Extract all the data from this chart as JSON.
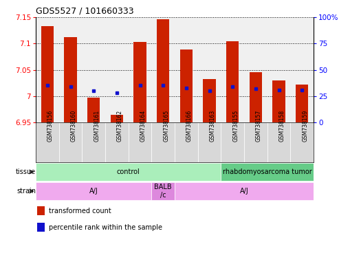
{
  "title": "GDS5527 / 101660333",
  "samples": [
    "GSM738156",
    "GSM738160",
    "GSM738161",
    "GSM738162",
    "GSM738164",
    "GSM738165",
    "GSM738166",
    "GSM738163",
    "GSM738155",
    "GSM738157",
    "GSM738158",
    "GSM738159"
  ],
  "bar_values": [
    7.133,
    7.112,
    6.997,
    6.965,
    7.103,
    7.146,
    7.088,
    7.033,
    7.104,
    7.045,
    7.03,
    7.022
  ],
  "percentile_values": [
    35,
    34,
    30,
    28,
    35,
    35,
    33,
    30,
    34,
    32,
    31,
    31
  ],
  "ymin": 6.95,
  "ymax": 7.15,
  "y_ticks": [
    6.95,
    7.0,
    7.05,
    7.1,
    7.15
  ],
  "y_tick_labels": [
    "6.95",
    "7",
    "7.05",
    "7.1",
    "7.15"
  ],
  "y2_ticks": [
    0,
    25,
    50,
    75,
    100
  ],
  "bar_color": "#cc2200",
  "dot_color": "#1111cc",
  "chart_bg": "#f0f0f0",
  "sample_bg": "#d8d8d8",
  "tissue_groups": [
    {
      "label": "control",
      "start": 0,
      "end": 8,
      "color": "#aaeebb"
    },
    {
      "label": "rhabdomyosarcoma tumor",
      "start": 8,
      "end": 12,
      "color": "#66cc88"
    }
  ],
  "strain_groups": [
    {
      "label": "A/J",
      "start": 0,
      "end": 5,
      "color": "#f0aaee"
    },
    {
      "label": "BALB\n/c",
      "start": 5,
      "end": 6,
      "color": "#dd88dd"
    },
    {
      "label": "A/J",
      "start": 6,
      "end": 12,
      "color": "#f0aaee"
    }
  ],
  "legend_items": [
    {
      "color": "#cc2200",
      "label": "transformed count"
    },
    {
      "color": "#1111cc",
      "label": "percentile rank within the sample"
    }
  ]
}
